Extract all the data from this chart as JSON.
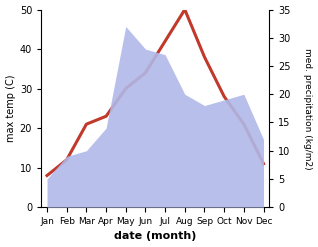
{
  "months": [
    "Jan",
    "Feb",
    "Mar",
    "Apr",
    "May",
    "Jun",
    "Jul",
    "Aug",
    "Sep",
    "Oct",
    "Nov",
    "Dec"
  ],
  "temperature": [
    8,
    12,
    21,
    23,
    30,
    34,
    42,
    50,
    38,
    28,
    21,
    11
  ],
  "precipitation": [
    5,
    9,
    10,
    14,
    32,
    28,
    27,
    20,
    18,
    19,
    20,
    12
  ],
  "temp_color": "#c0392b",
  "precip_color_fill": "#b0b8e8",
  "temp_ylim": [
    0,
    50
  ],
  "precip_ylim": [
    0,
    35
  ],
  "temp_yticks": [
    0,
    10,
    20,
    30,
    40,
    50
  ],
  "precip_yticks": [
    0,
    5,
    10,
    15,
    20,
    25,
    30,
    35
  ],
  "xlabel": "date (month)",
  "ylabel_left": "max temp (C)",
  "ylabel_right": "med. precipitation (kg/m2)",
  "background_color": "#ffffff",
  "line_width": 2.2
}
